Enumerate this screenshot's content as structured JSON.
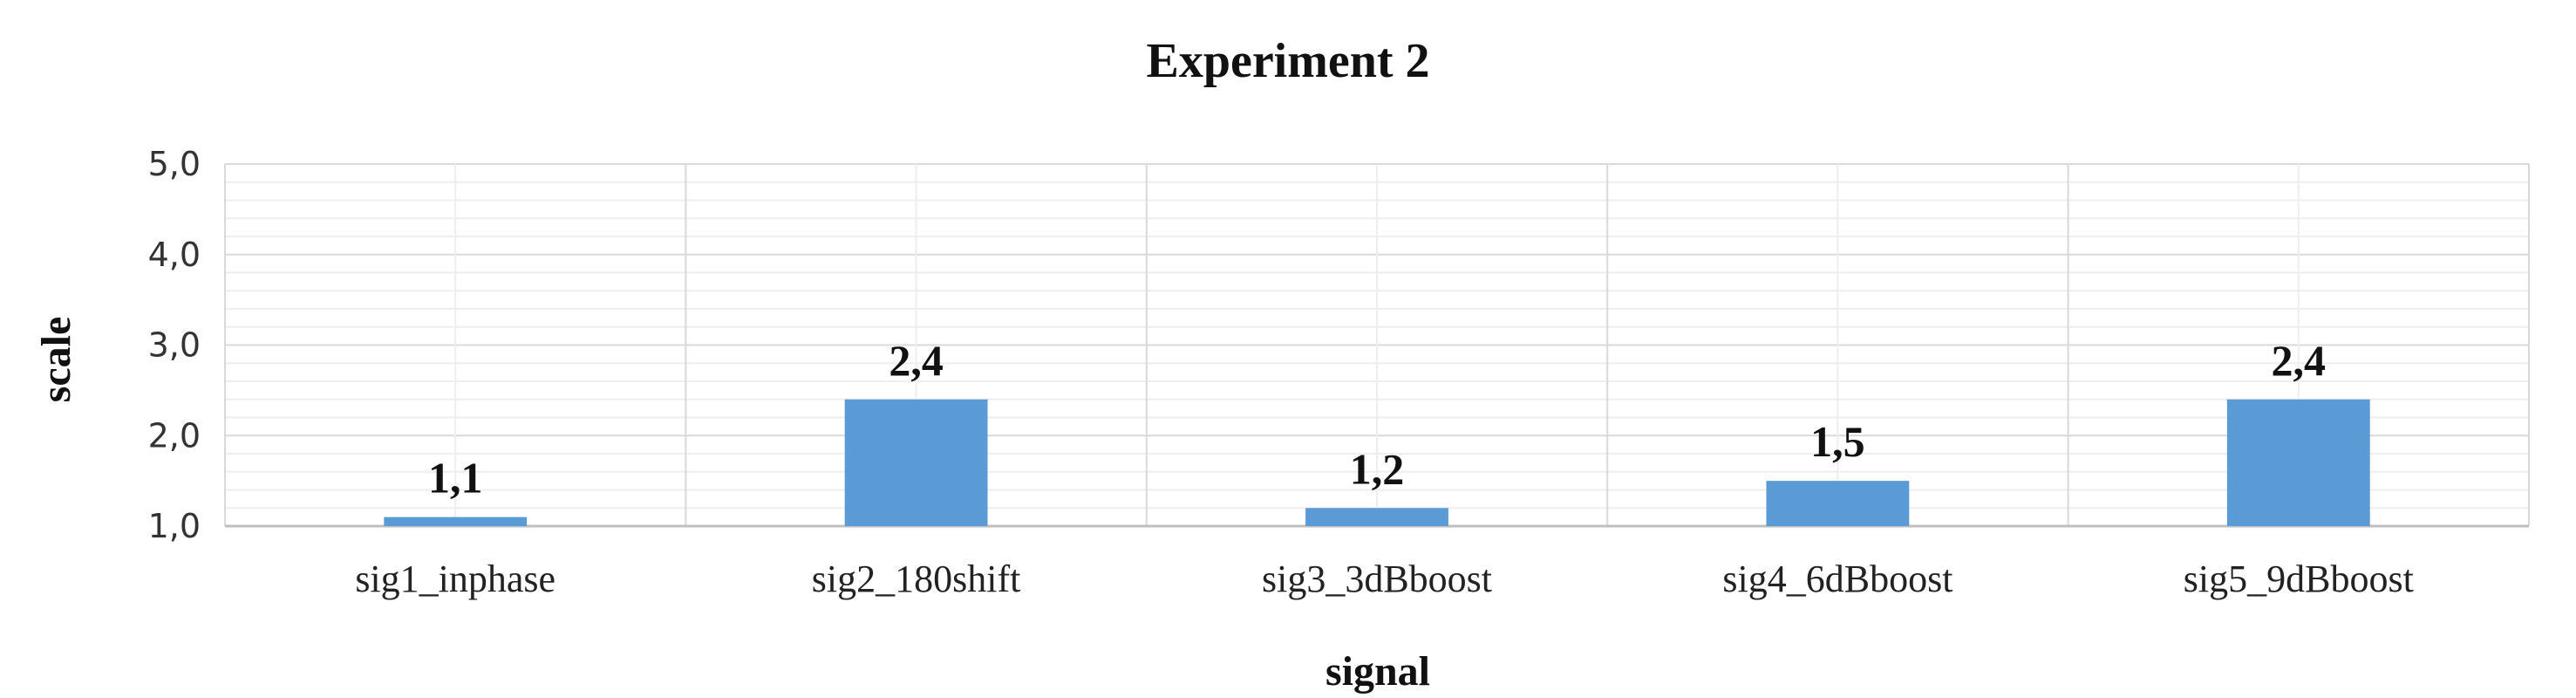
{
  "chart_data": {
    "type": "bar",
    "title": "Experiment 2",
    "xlabel": "signal",
    "ylabel": "scale",
    "categories": [
      "sig1_inphase",
      "sig2_180shift",
      "sig3_3dBboost",
      "sig4_6dBboost",
      "sig5_9dBboost"
    ],
    "values": [
      1.1,
      2.4,
      1.2,
      1.5,
      2.4
    ],
    "data_labels": [
      "1,1",
      "2,4",
      "1,2",
      "1,5",
      "2,4"
    ],
    "ylim": [
      1.0,
      5.0
    ],
    "y_ticks": [
      1.0,
      2.0,
      3.0,
      4.0,
      5.0
    ],
    "y_tick_labels": [
      "1,0",
      "2,0",
      "3,0",
      "4,0",
      "5,0"
    ],
    "minor_grid_step": 0.2,
    "grid": true,
    "legend": "none",
    "colors": {
      "bar": "#5b9bd5",
      "major_grid": "#d9d9d9",
      "minor_grid": "#eeeeee"
    }
  }
}
